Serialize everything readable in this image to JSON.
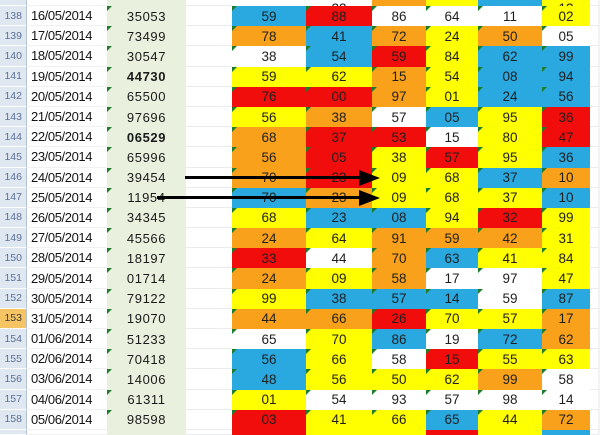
{
  "app": {
    "title": "spreadsheet-results-grid"
  },
  "colors": {
    "cell_blue": "#2aa9e0",
    "cell_red": "#f20d0d",
    "cell_orange": "#f9a11b",
    "cell_yellow": "#ffff00",
    "cell_white": "#ffffff",
    "draw_column_bg": "#e9f0de",
    "row_header_bg": "#dfe7f1",
    "row_header_selected_bg": "#f7c463",
    "comment_triangle": "#1e7d2c",
    "arrow": "#000000"
  },
  "grid": {
    "partial_top": {
      "cells": [
        [
          "",
          "white"
        ],
        [
          "22",
          "white"
        ],
        [
          "",
          "orange"
        ],
        [
          "",
          "yellow"
        ],
        [
          "",
          "blue"
        ],
        [
          "12",
          "yellow"
        ]
      ]
    },
    "rows": [
      {
        "num": "138",
        "date": "16/05/2014",
        "draw": "35053",
        "bold": false,
        "selected": false,
        "arrow": false,
        "cells": [
          [
            "59",
            "blue"
          ],
          [
            "88",
            "red"
          ],
          [
            "86",
            "white"
          ],
          [
            "64",
            "white"
          ],
          [
            "11",
            "white"
          ],
          [
            "02",
            "yellow"
          ]
        ]
      },
      {
        "num": "139",
        "date": "17/05/2014",
        "draw": "73499",
        "bold": false,
        "selected": false,
        "arrow": false,
        "cells": [
          [
            "78",
            "orange"
          ],
          [
            "41",
            "blue"
          ],
          [
            "72",
            "orange"
          ],
          [
            "24",
            "yellow"
          ],
          [
            "50",
            "orange"
          ],
          [
            "05",
            "white"
          ]
        ]
      },
      {
        "num": "140",
        "date": "18/05/2014",
        "draw": "30547",
        "bold": false,
        "selected": false,
        "arrow": false,
        "cells": [
          [
            "38",
            "white"
          ],
          [
            "54",
            "blue"
          ],
          [
            "59",
            "red"
          ],
          [
            "84",
            "yellow"
          ],
          [
            "62",
            "blue"
          ],
          [
            "99",
            "blue"
          ]
        ]
      },
      {
        "num": "141",
        "date": "19/05/2014",
        "draw": "44730",
        "bold": true,
        "selected": false,
        "arrow": false,
        "cells": [
          [
            "59",
            "yellow"
          ],
          [
            "62",
            "yellow"
          ],
          [
            "15",
            "orange"
          ],
          [
            "54",
            "yellow"
          ],
          [
            "08",
            "blue"
          ],
          [
            "94",
            "blue"
          ]
        ]
      },
      {
        "num": "142",
        "date": "20/05/2014",
        "draw": "65500",
        "bold": false,
        "selected": false,
        "arrow": false,
        "cells": [
          [
            "76",
            "red"
          ],
          [
            "00",
            "red"
          ],
          [
            "97",
            "orange"
          ],
          [
            "01",
            "yellow"
          ],
          [
            "24",
            "blue"
          ],
          [
            "56",
            "blue"
          ]
        ]
      },
      {
        "num": "143",
        "date": "21/05/2014",
        "draw": "97696",
        "bold": false,
        "selected": false,
        "arrow": false,
        "cells": [
          [
            "56",
            "yellow"
          ],
          [
            "38",
            "orange"
          ],
          [
            "57",
            "white"
          ],
          [
            "05",
            "blue"
          ],
          [
            "95",
            "yellow"
          ],
          [
            "36",
            "red"
          ]
        ]
      },
      {
        "num": "144",
        "date": "22/05/2014",
        "draw": "06529",
        "bold": true,
        "selected": false,
        "arrow": false,
        "cells": [
          [
            "68",
            "orange"
          ],
          [
            "37",
            "red"
          ],
          [
            "53",
            "red"
          ],
          [
            "15",
            "white"
          ],
          [
            "80",
            "yellow"
          ],
          [
            "47",
            "red"
          ]
        ]
      },
      {
        "num": "145",
        "date": "23/05/2014",
        "draw": "65996",
        "bold": false,
        "selected": false,
        "arrow": false,
        "cells": [
          [
            "56",
            "orange"
          ],
          [
            "05",
            "red"
          ],
          [
            "38",
            "yellow"
          ],
          [
            "57",
            "red"
          ],
          [
            "95",
            "yellow"
          ],
          [
            "36",
            "blue"
          ]
        ]
      },
      {
        "num": "146",
        "date": "24/05/2014",
        "draw": "39454",
        "bold": false,
        "selected": false,
        "arrow": true,
        "cells": [
          [
            "70",
            "orange"
          ],
          [
            "23",
            "red"
          ],
          [
            "09",
            "yellow"
          ],
          [
            "68",
            "yellow"
          ],
          [
            "37",
            "blue"
          ],
          [
            "10",
            "orange"
          ]
        ]
      },
      {
        "num": "147",
        "date": "25/05/2014",
        "draw": "11954",
        "bold": false,
        "selected": false,
        "arrow": true,
        "cells": [
          [
            "70",
            "blue"
          ],
          [
            "23",
            "orange"
          ],
          [
            "09",
            "yellow"
          ],
          [
            "68",
            "yellow"
          ],
          [
            "37",
            "yellow"
          ],
          [
            "10",
            "blue"
          ]
        ]
      },
      {
        "num": "148",
        "date": "26/05/2014",
        "draw": "34345",
        "bold": false,
        "selected": false,
        "arrow": false,
        "cells": [
          [
            "68",
            "yellow"
          ],
          [
            "23",
            "blue"
          ],
          [
            "08",
            "blue"
          ],
          [
            "94",
            "yellow"
          ],
          [
            "32",
            "red"
          ],
          [
            "99",
            "yellow"
          ]
        ]
      },
      {
        "num": "149",
        "date": "27/05/2014",
        "draw": "45566",
        "bold": false,
        "selected": false,
        "arrow": false,
        "cells": [
          [
            "24",
            "orange"
          ],
          [
            "64",
            "yellow"
          ],
          [
            "91",
            "orange"
          ],
          [
            "59",
            "orange"
          ],
          [
            "42",
            "orange"
          ],
          [
            "31",
            "yellow"
          ]
        ]
      },
      {
        "num": "150",
        "date": "28/05/2014",
        "draw": "18197",
        "bold": false,
        "selected": false,
        "arrow": false,
        "cells": [
          [
            "33",
            "red"
          ],
          [
            "44",
            "white"
          ],
          [
            "70",
            "orange"
          ],
          [
            "63",
            "blue"
          ],
          [
            "41",
            "yellow"
          ],
          [
            "84",
            "yellow"
          ]
        ]
      },
      {
        "num": "151",
        "date": "29/05/2014",
        "draw": "01714",
        "bold": false,
        "selected": false,
        "arrow": false,
        "cells": [
          [
            "24",
            "orange"
          ],
          [
            "09",
            "yellow"
          ],
          [
            "58",
            "orange"
          ],
          [
            "17",
            "white"
          ],
          [
            "97",
            "white"
          ],
          [
            "47",
            "yellow"
          ]
        ]
      },
      {
        "num": "152",
        "date": "30/05/2014",
        "draw": "79122",
        "bold": false,
        "selected": false,
        "arrow": false,
        "cells": [
          [
            "99",
            "yellow"
          ],
          [
            "38",
            "blue"
          ],
          [
            "57",
            "blue"
          ],
          [
            "14",
            "blue"
          ],
          [
            "59",
            "white"
          ],
          [
            "87",
            "blue"
          ]
        ]
      },
      {
        "num": "153",
        "date": "31/05/2014",
        "draw": "19070",
        "bold": false,
        "selected": true,
        "arrow": false,
        "cells": [
          [
            "44",
            "orange"
          ],
          [
            "66",
            "orange"
          ],
          [
            "26",
            "red"
          ],
          [
            "70",
            "yellow"
          ],
          [
            "57",
            "yellow"
          ],
          [
            "17",
            "orange"
          ]
        ]
      },
      {
        "num": "154",
        "date": "01/06/2014",
        "draw": "51233",
        "bold": false,
        "selected": false,
        "arrow": false,
        "cells": [
          [
            "65",
            "white"
          ],
          [
            "70",
            "yellow"
          ],
          [
            "86",
            "blue"
          ],
          [
            "19",
            "white"
          ],
          [
            "72",
            "blue"
          ],
          [
            "62",
            "orange"
          ]
        ]
      },
      {
        "num": "155",
        "date": "02/06/2014",
        "draw": "70418",
        "bold": false,
        "selected": false,
        "arrow": false,
        "cells": [
          [
            "56",
            "blue"
          ],
          [
            "66",
            "yellow"
          ],
          [
            "58",
            "white"
          ],
          [
            "15",
            "red"
          ],
          [
            "55",
            "yellow"
          ],
          [
            "63",
            "yellow"
          ]
        ]
      },
      {
        "num": "156",
        "date": "03/06/2014",
        "draw": "14006",
        "bold": false,
        "selected": false,
        "arrow": false,
        "cells": [
          [
            "48",
            "blue"
          ],
          [
            "56",
            "yellow"
          ],
          [
            "50",
            "yellow"
          ],
          [
            "62",
            "yellow"
          ],
          [
            "99",
            "orange"
          ],
          [
            "58",
            "white"
          ]
        ]
      },
      {
        "num": "157",
        "date": "04/06/2014",
        "draw": "61311",
        "bold": false,
        "selected": false,
        "arrow": false,
        "cells": [
          [
            "01",
            "yellow"
          ],
          [
            "54",
            "white"
          ],
          [
            "93",
            "white"
          ],
          [
            "57",
            "white"
          ],
          [
            "98",
            "white"
          ],
          [
            "14",
            "white"
          ]
        ]
      },
      {
        "num": "158",
        "date": "05/06/2014",
        "draw": "98598",
        "bold": false,
        "selected": false,
        "arrow": false,
        "cells": [
          [
            "03",
            "red"
          ],
          [
            "41",
            "yellow"
          ],
          [
            "66",
            "yellow"
          ],
          [
            "65",
            "blue"
          ],
          [
            "44",
            "yellow"
          ],
          [
            "72",
            "orange"
          ]
        ]
      }
    ],
    "partial_bottom": {
      "cells": [
        [
          "",
          "red"
        ],
        [
          "",
          "yellow"
        ],
        [
          "",
          "yellow"
        ],
        [
          "",
          "red"
        ],
        [
          "",
          "yellow"
        ],
        [
          "",
          "blue"
        ]
      ]
    }
  },
  "annotations": {
    "arrows": [
      {
        "row": "146",
        "target_value": "09"
      },
      {
        "row": "147",
        "target_value": "09"
      }
    ]
  }
}
